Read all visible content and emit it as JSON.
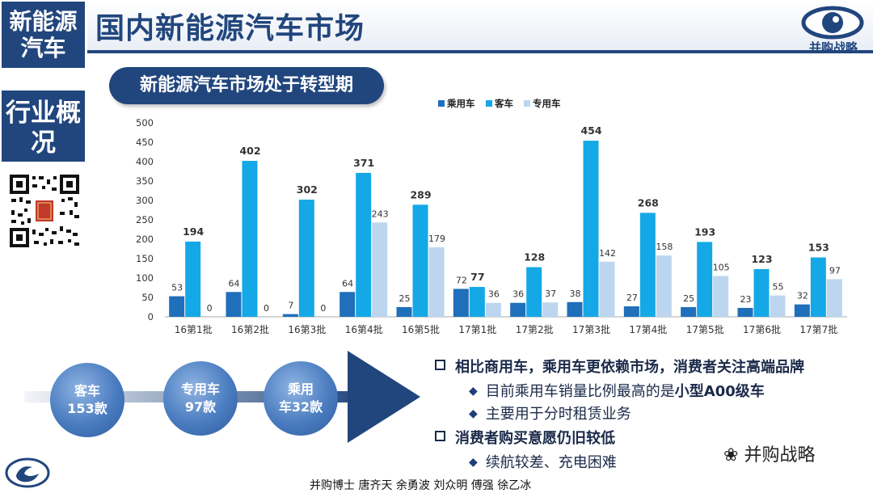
{
  "side_tags": [
    "新能源汽车",
    "行业概况"
  ],
  "main_title": "国内新能源汽车市场",
  "logo_text": "并购战略",
  "subtitle": "新能源汽车市场处于转型期",
  "chart_data": {
    "type": "bar",
    "title": "",
    "xlabel": "",
    "ylabel": "",
    "ylim": [
      0,
      500
    ],
    "yticks": [
      0,
      50,
      100,
      150,
      200,
      250,
      300,
      350,
      400,
      450,
      500
    ],
    "legend_position": "top",
    "categories": [
      "16第1批",
      "16第2批",
      "16第3批",
      "16第4批",
      "16第5批",
      "17第1批",
      "17第2批",
      "17第3批",
      "17第4批",
      "17第5批",
      "17第6批",
      "17第7批"
    ],
    "series": [
      {
        "name": "乘用车",
        "color": "#1f6fba",
        "values": [
          53,
          64,
          7,
          64,
          25,
          72,
          36,
          38,
          27,
          25,
          23,
          32
        ]
      },
      {
        "name": "客车",
        "color": "#15a8e6",
        "values": [
          194,
          402,
          302,
          371,
          289,
          77,
          128,
          454,
          268,
          193,
          123,
          153
        ]
      },
      {
        "name": "专用车",
        "color": "#bcd6ef",
        "values": [
          0,
          0,
          0,
          243,
          179,
          36,
          37,
          142,
          158,
          105,
          55,
          97
        ]
      }
    ]
  },
  "timeline": [
    {
      "line1": "客车",
      "line2": "153款"
    },
    {
      "line1": "专用车",
      "line2": "97款"
    },
    {
      "line1": "乘用",
      "line2": "车32款"
    }
  ],
  "bullets": {
    "b1": "相比商用车，乘用车更依赖市场，消费者关注高端品牌",
    "b1a_pre": "目前乘用车销量比例最高的是",
    "b1a_hl": "小型A00级车",
    "b1b": "主要用于分时租赁业务",
    "b2": "消费者购买意愿仍旧较低",
    "b2a": "续航较差、充电困难"
  },
  "wechat_label": "并购战略",
  "footer_credit": "并购博士 唐齐天 余勇波 刘众明 傅强 徐乙冰"
}
